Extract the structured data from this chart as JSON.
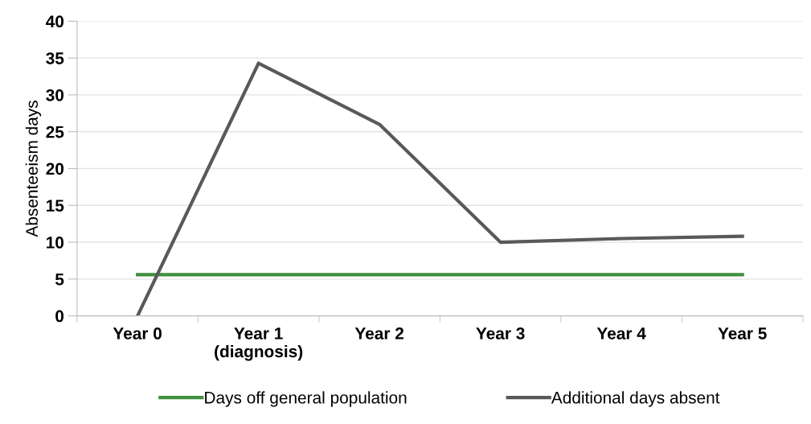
{
  "chart_data": {
    "type": "line",
    "ylabel": "Absenteeism days",
    "categories": [
      "Year 0",
      "Year 1\n(diagnosis)",
      "Year 2",
      "Year 3",
      "Year 4",
      "Year 5"
    ],
    "series": [
      {
        "name": "Days off general population",
        "color": "#3f8f3f",
        "values": [
          5.6,
          5.6,
          5.6,
          5.6,
          5.6,
          5.6
        ]
      },
      {
        "name": "Additional days absent",
        "color": "#58595b",
        "values": [
          0,
          34.3,
          26.0,
          10.0,
          10.5,
          10.8
        ]
      }
    ],
    "ylim": [
      0,
      40
    ],
    "yticks": [
      0,
      5,
      10,
      15,
      20,
      25,
      30,
      35,
      40
    ],
    "grid": "y",
    "legend": "bottom",
    "marker": "none",
    "line_style": "solid"
  }
}
